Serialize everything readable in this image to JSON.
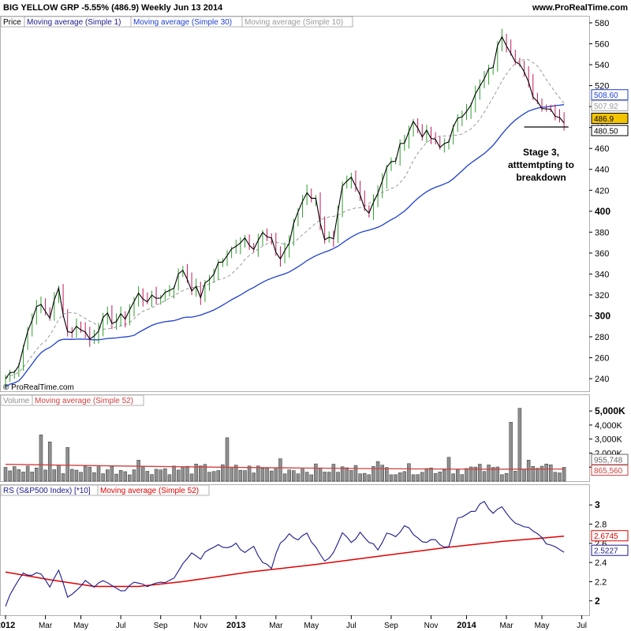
{
  "header": {
    "title": "BIG YELLOW GRP   -5.55% (486.9)   Weekly   Jun 13 2014",
    "site": "www.ProRealTime.com",
    "copyright": "© ProRealTime.com"
  },
  "colors": {
    "up": "#2e9e2e",
    "down": "#c2185b",
    "ma1": "#000000",
    "ma30": "#1f3fd1",
    "ma10": "#9a9a9a",
    "volume_bar": "#909090",
    "volume_ma": "#d04040",
    "rs_line": "#1a1a8c",
    "rs_ma": "#e00000",
    "price_tag": "#f5c400"
  },
  "chart_data": [
    {
      "type": "bar",
      "panel": "price",
      "legend": [
        "Price",
        "Moving average (Simple 1)",
        "Moving average (Simple 30)",
        "Moving average (Simple 10)"
      ],
      "ylim": [
        228,
        586
      ],
      "y_ticks": [
        240,
        260,
        280,
        300,
        320,
        340,
        360,
        380,
        400,
        420,
        440,
        460,
        480,
        500,
        520,
        540,
        560,
        580
      ],
      "y_ticks_bold": [
        300,
        400
      ],
      "value_tags": {
        "ma30": "508.60",
        "ma10": "507.92",
        "last": "486.9",
        "hidden": "480.50"
      },
      "x_labels": [
        {
          "label": "2012",
          "week": 0,
          "bold": true
        },
        {
          "label": "Mar",
          "week": 9
        },
        {
          "label": "May",
          "week": 17
        },
        {
          "label": "Jul",
          "week": 26
        },
        {
          "label": "Sep",
          "week": 35
        },
        {
          "label": "Nov",
          "week": 44
        },
        {
          "label": "2013",
          "week": 52,
          "bold": true
        },
        {
          "label": "Mar",
          "week": 61
        },
        {
          "label": "May",
          "week": 69
        },
        {
          "label": "Jul",
          "week": 78
        },
        {
          "label": "Sep",
          "week": 87
        },
        {
          "label": "Nov",
          "week": 96
        },
        {
          "label": "2014",
          "week": 104,
          "bold": true
        },
        {
          "label": "Mar",
          "week": 113
        },
        {
          "label": "May",
          "week": 121
        },
        {
          "label": "Jul",
          "week": 130
        }
      ],
      "close_anchors": [
        [
          0,
          240
        ],
        [
          3,
          255
        ],
        [
          6,
          300
        ],
        [
          8,
          310
        ],
        [
          10,
          300
        ],
        [
          12,
          325
        ],
        [
          14,
          285
        ],
        [
          17,
          290
        ],
        [
          19,
          278
        ],
        [
          21,
          290
        ],
        [
          23,
          298
        ],
        [
          25,
          295
        ],
        [
          27,
          300
        ],
        [
          30,
          320
        ],
        [
          33,
          315
        ],
        [
          36,
          322
        ],
        [
          38,
          330
        ],
        [
          40,
          345
        ],
        [
          42,
          328
        ],
        [
          44,
          320
        ],
        [
          46,
          335
        ],
        [
          48,
          350
        ],
        [
          50,
          355
        ],
        [
          52,
          370
        ],
        [
          54,
          375
        ],
        [
          56,
          368
        ],
        [
          58,
          378
        ],
        [
          60,
          370
        ],
        [
          62,
          355
        ],
        [
          64,
          370
        ],
        [
          66,
          400
        ],
        [
          68,
          420
        ],
        [
          70,
          410
        ],
        [
          72,
          375
        ],
        [
          74,
          370
        ],
        [
          76,
          420
        ],
        [
          78,
          430
        ],
        [
          80,
          415
        ],
        [
          82,
          400
        ],
        [
          84,
          420
        ],
        [
          86,
          440
        ],
        [
          88,
          450
        ],
        [
          90,
          470
        ],
        [
          92,
          485
        ],
        [
          94,
          475
        ],
        [
          96,
          470
        ],
        [
          98,
          460
        ],
        [
          100,
          470
        ],
        [
          102,
          485
        ],
        [
          104,
          500
        ],
        [
          106,
          510
        ],
        [
          108,
          525
        ],
        [
          110,
          540
        ],
        [
          112,
          570
        ],
        [
          114,
          555
        ],
        [
          116,
          540
        ],
        [
          118,
          520
        ],
        [
          120,
          505
        ],
        [
          122,
          500
        ],
        [
          124,
          495
        ],
        [
          126,
          487
        ]
      ],
      "support_line": {
        "value": 480.5,
        "from_week": 117,
        "to_week": 127
      },
      "annotation": "Stage 3,\natttemtpting to\nbreakdown"
    },
    {
      "type": "bar",
      "panel": "volume",
      "legend": [
        "Volume",
        "Moving average (Simple 52)"
      ],
      "ylim": [
        0,
        5400
      ],
      "y_ticks": [
        {
          "value": 1000,
          "label": "1,000K"
        },
        {
          "value": 2000,
          "label": "2,000K"
        },
        {
          "value": 3000,
          "label": "3,000K"
        },
        {
          "value": 4000,
          "label": "4,000K"
        },
        {
          "value": 5000,
          "label": "5,000K",
          "bold": true
        }
      ],
      "value_tags": {
        "volume": "955,748",
        "ma": "865,560"
      },
      "ma_value": 865,
      "spikes": [
        [
          8,
          3300
        ],
        [
          10,
          2800
        ],
        [
          14,
          2400
        ],
        [
          30,
          1500
        ],
        [
          50,
          3100
        ],
        [
          62,
          1600
        ],
        [
          84,
          1400
        ],
        [
          100,
          1700
        ],
        [
          114,
          4200
        ],
        [
          116,
          5200
        ],
        [
          118,
          1500
        ]
      ]
    },
    {
      "type": "line",
      "panel": "rs",
      "legend": [
        "RS (S&P500 Index) [*10]",
        "Moving average (Simple 52)"
      ],
      "ylim": [
        1.85,
        3.1
      ],
      "y_ticks": [
        {
          "value": 2.0,
          "label": "2",
          "bold": true
        },
        {
          "value": 2.2,
          "label": "2.2"
        },
        {
          "value": 2.4,
          "label": "2.4"
        },
        {
          "value": 2.6,
          "label": "2.6"
        },
        {
          "value": 2.8,
          "label": "2.8"
        },
        {
          "value": 3.0,
          "label": "3",
          "bold": true
        }
      ],
      "value_tags": {
        "ma": "2.6745",
        "rs": "2.5227"
      },
      "rs_anchors": [
        [
          0,
          1.95
        ],
        [
          2,
          2.15
        ],
        [
          4,
          2.3
        ],
        [
          6,
          2.25
        ],
        [
          8,
          2.3
        ],
        [
          10,
          2.15
        ],
        [
          12,
          2.3
        ],
        [
          14,
          2.05
        ],
        [
          16,
          2.1
        ],
        [
          18,
          2.2
        ],
        [
          20,
          2.15
        ],
        [
          22,
          2.2
        ],
        [
          24,
          2.15
        ],
        [
          26,
          2.1
        ],
        [
          28,
          2.15
        ],
        [
          30,
          2.2
        ],
        [
          32,
          2.15
        ],
        [
          34,
          2.2
        ],
        [
          36,
          2.2
        ],
        [
          38,
          2.25
        ],
        [
          40,
          2.4
        ],
        [
          42,
          2.5
        ],
        [
          44,
          2.45
        ],
        [
          46,
          2.55
        ],
        [
          48,
          2.6
        ],
        [
          50,
          2.55
        ],
        [
          52,
          2.6
        ],
        [
          54,
          2.5
        ],
        [
          56,
          2.55
        ],
        [
          58,
          2.4
        ],
        [
          60,
          2.35
        ],
        [
          62,
          2.6
        ],
        [
          64,
          2.7
        ],
        [
          66,
          2.65
        ],
        [
          68,
          2.7
        ],
        [
          70,
          2.55
        ],
        [
          72,
          2.4
        ],
        [
          74,
          2.5
        ],
        [
          76,
          2.7
        ],
        [
          78,
          2.6
        ],
        [
          80,
          2.7
        ],
        [
          82,
          2.6
        ],
        [
          84,
          2.55
        ],
        [
          86,
          2.7
        ],
        [
          88,
          2.65
        ],
        [
          90,
          2.8
        ],
        [
          92,
          2.7
        ],
        [
          94,
          2.6
        ],
        [
          96,
          2.65
        ],
        [
          98,
          2.6
        ],
        [
          100,
          2.55
        ],
        [
          102,
          2.85
        ],
        [
          104,
          2.9
        ],
        [
          106,
          2.95
        ],
        [
          108,
          3.05
        ],
        [
          110,
          2.9
        ],
        [
          112,
          3.0
        ],
        [
          114,
          2.85
        ],
        [
          116,
          2.8
        ],
        [
          118,
          2.75
        ],
        [
          120,
          2.7
        ],
        [
          122,
          2.6
        ],
        [
          124,
          2.58
        ],
        [
          126,
          2.52
        ]
      ],
      "ma_anchors": [
        [
          0,
          2.3
        ],
        [
          10,
          2.22
        ],
        [
          20,
          2.15
        ],
        [
          30,
          2.15
        ],
        [
          40,
          2.2
        ],
        [
          55,
          2.3
        ],
        [
          70,
          2.38
        ],
        [
          85,
          2.47
        ],
        [
          100,
          2.56
        ],
        [
          112,
          2.62
        ],
        [
          120,
          2.65
        ],
        [
          126,
          2.6745
        ]
      ]
    }
  ]
}
